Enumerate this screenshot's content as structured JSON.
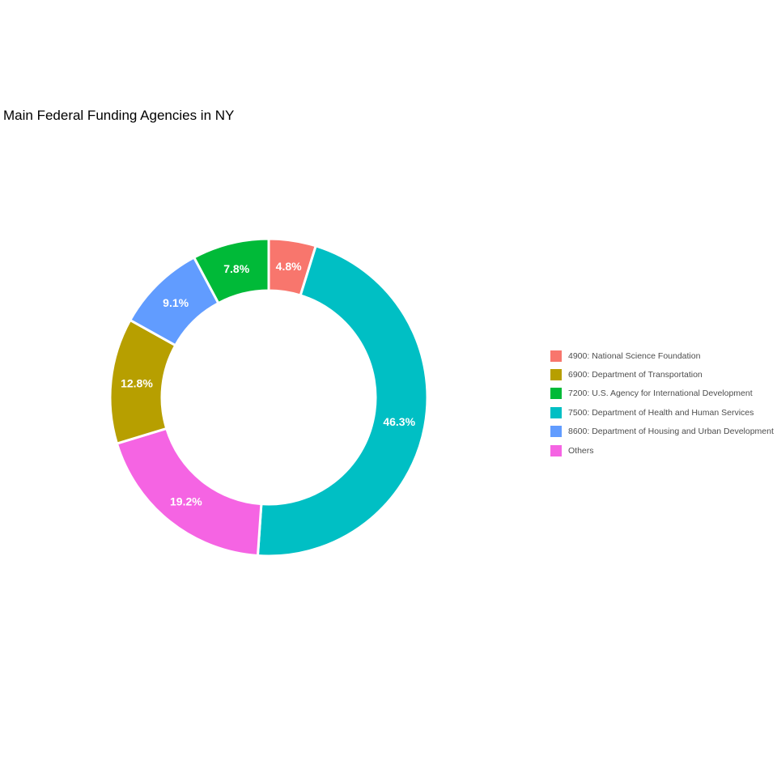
{
  "chart_data": {
    "type": "pie",
    "variant": "donut",
    "title": "Main Federal Funding Agencies in NY",
    "legend_position": "right",
    "slices": [
      {
        "label": "4900: National Science Foundation",
        "value": 4.8,
        "value_label": "4.8%",
        "color": "#F8766D"
      },
      {
        "label": "7500: Department of Health and Human Services",
        "value": 46.3,
        "value_label": "46.3%",
        "color": "#00BFC4"
      },
      {
        "label": "Others",
        "value": 19.2,
        "value_label": "19.2%",
        "color": "#F564E3"
      },
      {
        "label": "6900: Department of Transportation",
        "value": 12.8,
        "value_label": "12.8%",
        "color": "#B79F00"
      },
      {
        "label": "8600: Department of Housing and Urban Development",
        "value": 9.1,
        "value_label": "9.1%",
        "color": "#619CFF"
      },
      {
        "label": "7200: U.S. Agency for International Development",
        "value": 7.8,
        "value_label": "7.8%",
        "color": "#00BA38"
      }
    ],
    "legend_entries": [
      {
        "label": "4900: National Science Foundation",
        "color": "#F8766D"
      },
      {
        "label": "6900: Department of Transportation",
        "color": "#B79F00"
      },
      {
        "label": "7200: U.S. Agency for International Development",
        "color": "#00BA38"
      },
      {
        "label": "7500: Department of Health and Human Services",
        "color": "#00BFC4"
      },
      {
        "label": "8600: Department of Housing and Urban Development",
        "color": "#619CFF"
      },
      {
        "label": "Others",
        "color": "#F564E3"
      }
    ]
  }
}
